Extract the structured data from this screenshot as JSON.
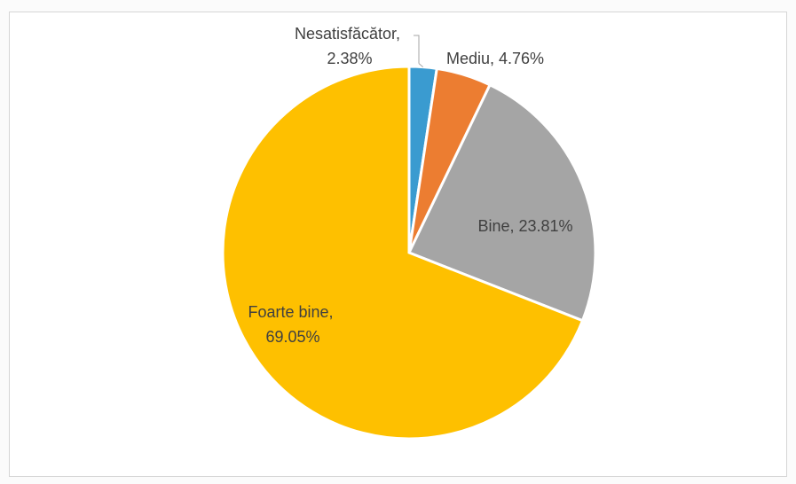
{
  "chart_data": {
    "type": "pie",
    "slices": [
      {
        "label": "Nesatisfăcător",
        "value": 2.38,
        "label_text": "Nesatisfăcător, 2.38%",
        "color": "#3a9bd0"
      },
      {
        "label": "Mediu",
        "value": 4.76,
        "label_text": "Mediu, 4.76%",
        "color": "#ec7d31"
      },
      {
        "label": "Bine",
        "value": 23.81,
        "label_text": "Bine, 23.81%",
        "color": "#a5a5a5"
      },
      {
        "label": "Foarte bine",
        "value": 69.05,
        "label_text": "Foarte bine, 69.05%",
        "color": "#fec000"
      }
    ],
    "start_angle_deg": 0,
    "direction": "clockwise",
    "data_labels": true,
    "legend": false
  }
}
